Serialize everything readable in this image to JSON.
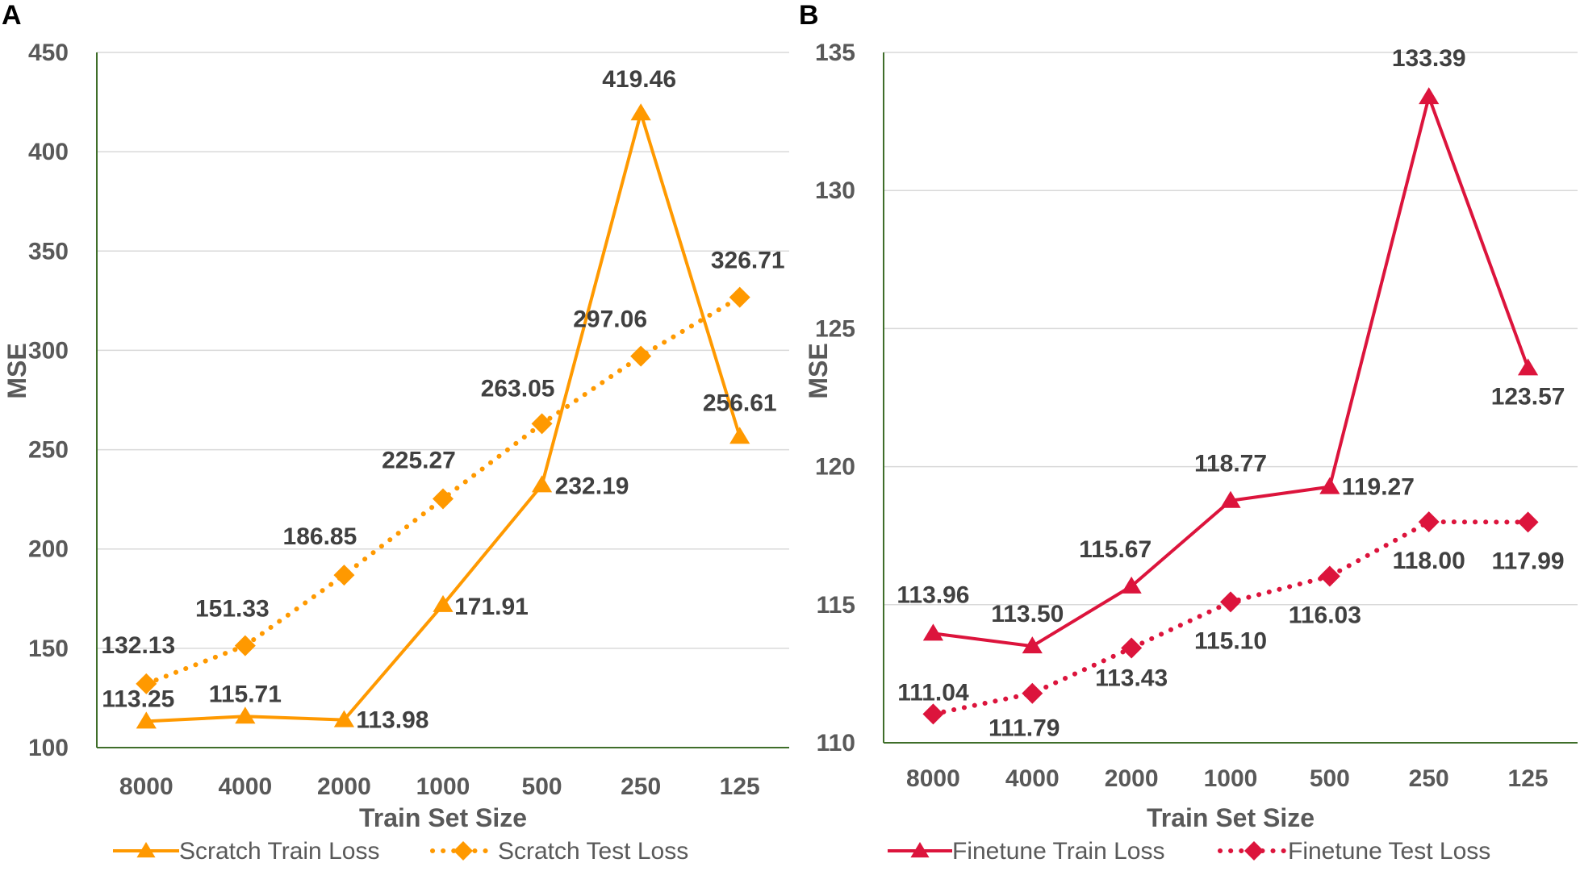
{
  "colors": {
    "scratch": "#FF9900",
    "finetune": "#DC143C",
    "grid": "#D9D9D9",
    "axis": "#3F6E2A"
  },
  "chart_data": [
    {
      "panel_label": "A",
      "type": "line",
      "categories": [
        "8000",
        "4000",
        "2000",
        "1000",
        "500",
        "250",
        "125"
      ],
      "xlabel": "Train Set Size",
      "ylabel": "MSE",
      "ylim": [
        100,
        450
      ],
      "yticks": [
        "100",
        "150",
        "200",
        "250",
        "300",
        "350",
        "400",
        "450"
      ],
      "series": [
        {
          "name": "Scratch Train Loss",
          "style": "solid",
          "marker": "triangle",
          "values": [
            113.25,
            115.71,
            113.98,
            171.91,
            232.19,
            419.46,
            256.61
          ],
          "labels": [
            "113.25",
            "115.71",
            "113.98",
            "171.91",
            "232.19",
            "419.46",
            "256.61"
          ]
        },
        {
          "name": "Scratch Test Loss",
          "style": "dotted",
          "marker": "diamond",
          "values": [
            132.13,
            151.33,
            186.85,
            225.27,
            263.05,
            297.06,
            326.71
          ],
          "labels": [
            "132.13",
            "151.33",
            "186.85",
            "225.27",
            "263.05",
            "297.06",
            "326.71"
          ]
        }
      ]
    },
    {
      "panel_label": "B",
      "type": "line",
      "categories": [
        "8000",
        "4000",
        "2000",
        "1000",
        "500",
        "250",
        "125"
      ],
      "xlabel": "Train Set Size",
      "ylabel": "MSE",
      "ylim": [
        110,
        135
      ],
      "yticks": [
        "110",
        "115",
        "120",
        "125",
        "130",
        "135"
      ],
      "series": [
        {
          "name": "Finetune Train Loss",
          "style": "solid",
          "marker": "triangle",
          "values": [
            113.96,
            113.5,
            115.67,
            118.77,
            119.27,
            133.39,
            123.57
          ],
          "labels": [
            "113.96",
            "113.50",
            "115.67",
            "118.77",
            "119.27",
            "133.39",
            "123.57"
          ]
        },
        {
          "name": "Finetune Test Loss",
          "style": "dotted",
          "marker": "diamond",
          "values": [
            111.04,
            111.79,
            113.43,
            115.1,
            116.03,
            118.0,
            117.99
          ],
          "labels": [
            "111.04",
            "111.79",
            "113.43",
            "115.10",
            "116.03",
            "118.00",
            "117.99"
          ]
        }
      ]
    }
  ]
}
